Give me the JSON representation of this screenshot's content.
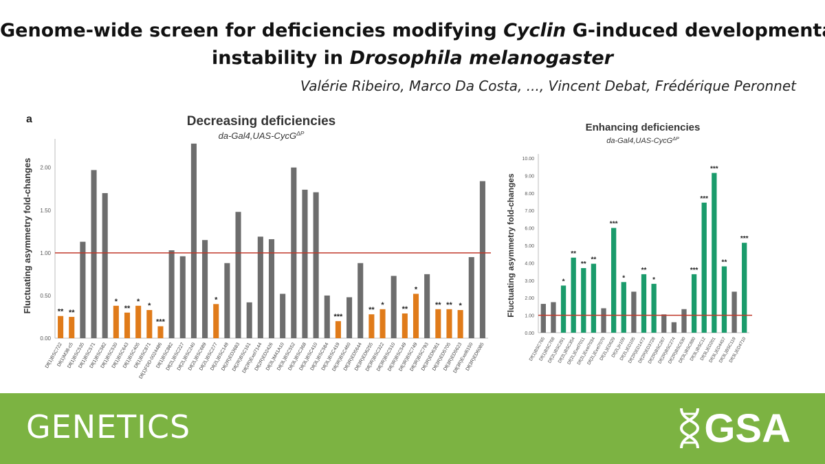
{
  "header": {
    "title_line1_pre": "Genome-wide screen for deficiencies modifying ",
    "title_line1_italic": "Cyclin",
    "title_line1_post": " G-induced developmental",
    "title_line2_pre": "instability in ",
    "title_line2_italic": "Drosophila melanogaster",
    "authors": "Valérie Ribeiro, Marco Da Costa, ..., Vincent Debat, Frédérique Peronnet"
  },
  "footer": {
    "journal": "GENETICS",
    "logo_text": "GSA"
  },
  "colors": {
    "grey": "#6d6d6d",
    "orange": "#e07b1a",
    "green": "#1a9b6b",
    "refline": "#c0392b",
    "footer": "#7cb342"
  },
  "chart_data": [
    {
      "type": "bar",
      "panel_label": "a",
      "title": "Decreasing deficiencies",
      "subtitle": "da-Gal4,UAS-CycG",
      "subtitle_sup": "ΔP",
      "ylabel": "Fluctuating asymmetry fold-changes",
      "ylim": [
        0,
        2.4
      ],
      "yticks": [
        "0.00",
        "0.50",
        "1.00",
        "1.50",
        "2.00"
      ],
      "reference_line": 1.0,
      "categories": [
        "Df(1)BSC722",
        "Df(1)M38-c5",
        "Df(1)BSC535",
        "Df(1)BSC571",
        "Df(1)BSC582",
        "Df(1)BSC530",
        "Df(1)BSC643",
        "Df(1)BSC405",
        "Df(1)BSC871",
        "Df(1)FDD-0024486",
        "Df(1)BSC882",
        "Df(2L)BSC227",
        "Df(2L)BSC240",
        "Df(2L)BSC689",
        "Df(2L)BSC277",
        "Df(2L)BSC149",
        "Df(2R)ED3683",
        "Df(2R)BSC161",
        "Df(2R)Exel7144",
        "Df(2R)ED2426",
        "Df(3L)M41A10",
        "Df(3L)BSC552",
        "Df(3L)BSC368",
        "Df(3L)BSC410",
        "Df(3L)BSC584",
        "Df(3L)BSC419",
        "Df(3R)BSC460",
        "Df(3R)ED5644",
        "Df(3R)ED6255",
        "Df(3R)BSC322",
        "Df(3R)BSC510",
        "Df(3R)BSC549",
        "Df(3R)BSC749",
        "Df(3R)BSC793",
        "Df(3R)ED6361",
        "Df(3R)ED5705",
        "Df(3R)ED5623",
        "Df(3R)Exel6150",
        "Df(3R)ED6085"
      ],
      "values": [
        0.26,
        0.25,
        1.13,
        1.97,
        1.7,
        0.38,
        0.3,
        0.38,
        0.33,
        0.14,
        1.03,
        0.96,
        2.28,
        1.15,
        0.4,
        0.88,
        1.48,
        0.42,
        1.19,
        1.16,
        0.52,
        2.0,
        1.74,
        1.71,
        0.5,
        0.2,
        0.48,
        0.88,
        0.28,
        0.34,
        0.73,
        0.29,
        0.52,
        0.75,
        0.34,
        0.34,
        0.33,
        0.95,
        1.84
      ],
      "colors": [
        "orange",
        "orange",
        "grey",
        "grey",
        "grey",
        "orange",
        "orange",
        "orange",
        "orange",
        "orange",
        "grey",
        "grey",
        "grey",
        "grey",
        "orange",
        "grey",
        "grey",
        "grey",
        "grey",
        "grey",
        "grey",
        "grey",
        "grey",
        "grey",
        "grey",
        "orange",
        "grey",
        "grey",
        "orange",
        "orange",
        "grey",
        "orange",
        "orange",
        "grey",
        "orange",
        "orange",
        "orange",
        "grey",
        "grey"
      ],
      "significance": [
        "**",
        "**",
        "",
        "",
        "",
        "*",
        "**",
        "*",
        "*",
        "***",
        "",
        "",
        "",
        "",
        "*",
        "",
        "",
        "",
        "",
        "",
        "",
        "",
        "",
        "",
        "",
        "***",
        "",
        "",
        "**",
        "*",
        "",
        "**",
        "*",
        "",
        "**",
        "**",
        "*",
        "",
        ""
      ]
    },
    {
      "type": "bar",
      "title": "Enhancing deficiencies",
      "subtitle": "da-Gal4,UAS-CycG",
      "subtitle_sup": "ΔP",
      "ylabel": "Fluctuating asymmetry fold-changes",
      "ylim": [
        0,
        10
      ],
      "yticks": [
        "0.00",
        "1.00",
        "2.00",
        "3.00",
        "4.00",
        "5.00",
        "6.00",
        "7.00",
        "8.00",
        "9.00",
        "10.00"
      ],
      "reference_line": 1.0,
      "categories": [
        "Df(1)BSC765",
        "Df(1)BSC768",
        "Df(2L)BSC291",
        "Df(2L)BSC354",
        "Df(2L)Exel7011",
        "Df(2L)Exel7034",
        "Df(2L)Exel7070",
        "Df(2L)ED629",
        "Df(2L)Ir109",
        "Df(2L)ED105",
        "Df(2R)ED1473",
        "Df(2R)ED3728",
        "Df(2R)BSC267",
        "Df(2R)BSC274",
        "Df(2R)BSC630",
        "Df(3L)BSC880",
        "Df(3L)BSC12",
        "Df(3L)ED201",
        "Df(3L)ED4457",
        "Df(3L)BSC119",
        "Df(3L)ED4710"
      ],
      "values": [
        1.65,
        1.75,
        2.7,
        4.3,
        3.7,
        3.95,
        1.4,
        6.0,
        2.9,
        2.35,
        3.35,
        2.8,
        1.05,
        0.6,
        1.35,
        3.35,
        7.45,
        9.15,
        3.8,
        2.35,
        5.15
      ],
      "colors": [
        "grey",
        "grey",
        "green",
        "green",
        "green",
        "green",
        "grey",
        "green",
        "green",
        "grey",
        "green",
        "green",
        "grey",
        "grey",
        "grey",
        "green",
        "green",
        "green",
        "green",
        "grey",
        "green"
      ],
      "significance": [
        "",
        "",
        "*",
        "**",
        "**",
        "**",
        "",
        "***",
        "*",
        "",
        "**",
        "*",
        "",
        "",
        "",
        "***",
        "***",
        "***",
        "**",
        "",
        "***"
      ]
    }
  ]
}
